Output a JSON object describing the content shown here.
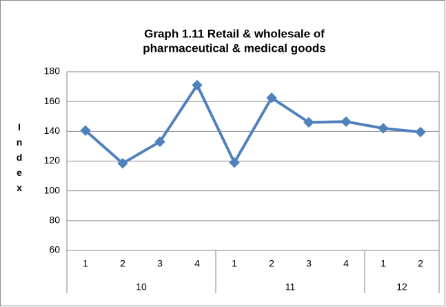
{
  "chart_data": {
    "type": "line",
    "title": [
      "Graph 1.11 Retail & wholesale of",
      "pharmaceutical & medical goods"
    ],
    "y_label": "Index",
    "groups": [
      {
        "name": "10",
        "categories": [
          "1",
          "2",
          "3",
          "4"
        ]
      },
      {
        "name": "11",
        "categories": [
          "1",
          "2",
          "3",
          "4"
        ]
      },
      {
        "name": "12",
        "categories": [
          "1",
          "2"
        ]
      }
    ],
    "series": [
      {
        "color": "#4f81bd",
        "values": [
          140.5,
          118.5,
          133,
          171,
          119,
          162.5,
          146,
          146.5,
          142,
          139.5
        ]
      }
    ],
    "ylim": [
      60,
      180
    ],
    "yticks": [
      60,
      80,
      100,
      120,
      140,
      160,
      180
    ],
    "grid": true
  }
}
